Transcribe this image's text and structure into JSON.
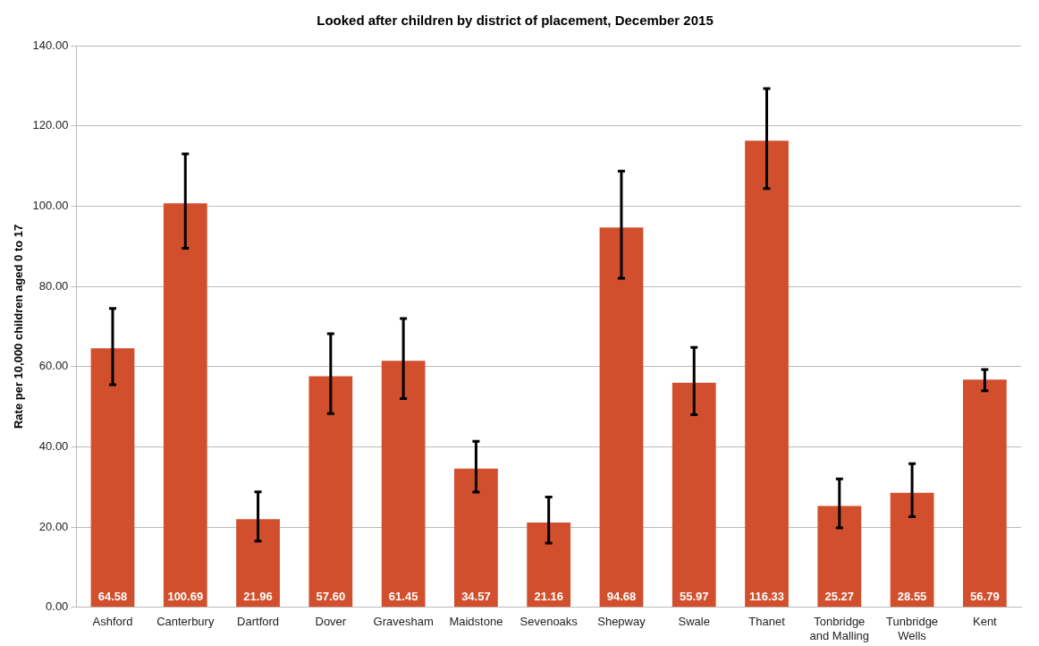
{
  "chart_data": {
    "type": "bar",
    "title": "Looked after children by district of placement, December 2015",
    "ylabel": "Rate per 10,000 children aged 0 to 17",
    "categories": [
      "Ashford",
      "Canterbury",
      "Dartford",
      "Dover",
      "Gravesham",
      "Maidstone",
      "Sevenoaks",
      "Shepway",
      "Swale",
      "Thanet",
      "Tonbridge and Malling",
      "Tunbridge Wells",
      "Kent"
    ],
    "values": [
      64.58,
      100.69,
      21.96,
      57.6,
      61.45,
      34.57,
      21.16,
      94.68,
      55.97,
      116.33,
      25.27,
      28.55,
      56.79
    ],
    "errors": [
      [
        55.5,
        74.5
      ],
      [
        89.5,
        113
      ],
      [
        16.5,
        28.8
      ],
      [
        48.3,
        68.2
      ],
      [
        52,
        72
      ],
      [
        28.7,
        41.4
      ],
      [
        16,
        27.5
      ],
      [
        82,
        108.7
      ],
      [
        48,
        64.8
      ],
      [
        104.4,
        129.3
      ],
      [
        19.8,
        32
      ],
      [
        22.6,
        35.8
      ],
      [
        54,
        59.3
      ]
    ],
    "color": "#d24f2d",
    "data_labels": true,
    "value_labels": [
      "64.58",
      "100.69",
      "21.96",
      "57.60",
      "61.45",
      "34.57",
      "21.16",
      "94.68",
      "55.97",
      "116.33",
      "25.27",
      "28.55",
      "56.79"
    ],
    "ylim": [
      0,
      140
    ],
    "yticks": [
      {
        "value": 0,
        "label": "0.00"
      },
      {
        "value": 20,
        "label": "20.00"
      },
      {
        "value": 40,
        "label": "40.00"
      },
      {
        "value": 60,
        "label": "60.00"
      },
      {
        "value": 80,
        "label": "80.00"
      },
      {
        "value": 100,
        "label": "100.00"
      },
      {
        "value": 120,
        "label": "120.00"
      },
      {
        "value": 140,
        "label": "140.00"
      }
    ],
    "grid": "y"
  }
}
